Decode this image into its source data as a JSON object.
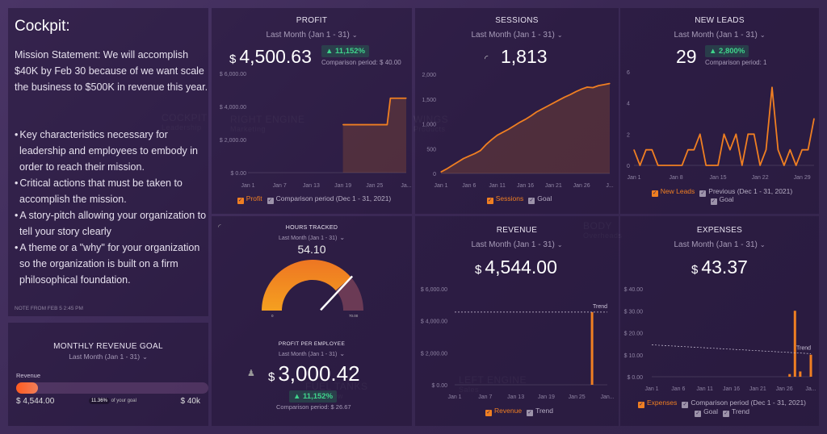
{
  "colors": {
    "accent": "#f07f22",
    "positive": "#3fd48b",
    "background": "#3a2854"
  },
  "watermarks": [
    {
      "title": "COCKPIT",
      "sub": "Leadership"
    },
    {
      "title": "RIGHT ENGINE",
      "sub": "Marketing"
    },
    {
      "title": "WINGS",
      "sub": "Products"
    },
    {
      "title": "BODY",
      "sub": "Overheads"
    },
    {
      "title": "LEFT ENGINE",
      "sub": "Sales"
    },
    {
      "title": "FUEL TANKS",
      "sub": "Cash Flow"
    }
  ],
  "note": {
    "title": "Cockpit:",
    "mission": "Mission Statement: We will accomplish $40K by Feb 30 because of we want scale the business to $500K in revenue this year.",
    "bullets": [
      "Key characteristics necessary for leadership and employees to embody in order to reach their mission.",
      "Critical actions that must be taken to accomplish the mission.",
      "A story-pitch allowing your organization to tell your story clearly",
      "A theme or a \"why\" for your organization so the organization is built on a firm philosophical foundation."
    ],
    "footer": "NOTE FROM FEB 5 2:45 PM"
  },
  "revenue_goal": {
    "title": "MONTHLY REVENUE GOAL",
    "date_range": "Last Month (Jan 1 - 31)",
    "label": "Revenue",
    "current": "$ 4,544.00",
    "percent_label": "11.36%",
    "percent_suffix": "of your goal",
    "target": "$ 40k",
    "progress_percent": 11.36
  },
  "profit": {
    "title": "PROFIT",
    "date_range": "Last Month (Jan 1 - 31)",
    "currency": "$",
    "value": "4,500.63",
    "change": "▲ 11,152%",
    "comparison": "Comparison period: $ 40.00",
    "legend": [
      "Profit",
      "Comparison period (Dec 1 - 31, 2021)"
    ]
  },
  "sessions": {
    "title": "SESSIONS",
    "date_range": "Last Month (Jan 1 - 31)",
    "value": "1,813",
    "legend": [
      "Sessions",
      "Goal"
    ]
  },
  "new_leads": {
    "title": "NEW LEADS",
    "date_range": "Last Month (Jan 1 - 31)",
    "value": "29",
    "change": "▲ 2,800%",
    "comparison": "Comparison period: 1",
    "legend": [
      "New Leads",
      "Previous (Dec 1 - 31, 2021)",
      "Goal"
    ]
  },
  "hours_tracked": {
    "title": "HOURS TRACKED",
    "date_range": "Last Month (Jan 1 - 31)",
    "value": "54.10",
    "min_label": "0",
    "max_label": "70.00",
    "gauge_value": 54.1,
    "gauge_max": 70
  },
  "profit_per_employee": {
    "title": "PROFIT PER EMPLOYEE",
    "date_range": "Last Month (Jan 1 - 31)",
    "currency": "$",
    "value": "3,000.42",
    "change": "▲ 11,152%",
    "comparison": "Comparison period: $ 26.67"
  },
  "revenue": {
    "title": "REVENUE",
    "date_range": "Last Month (Jan 1 - 31)",
    "currency": "$",
    "value": "4,544.00",
    "legend": [
      "Revenue",
      "Trend"
    ]
  },
  "expenses": {
    "title": "EXPENSES",
    "date_range": "Last Month (Jan 1 - 31)",
    "currency": "$",
    "value": "43.37",
    "legend": [
      "Expenses",
      "Comparison period (Dec 1 - 31, 2021)",
      "Goal",
      "Trend"
    ]
  },
  "chart_data": [
    {
      "id": "profit",
      "type": "area",
      "ylim": [
        0,
        6000
      ],
      "yticks": [
        "$ 6,000.00",
        "$ 4,000.00",
        "$ 2,000.00",
        "$ 0.00"
      ],
      "ytick_values": [
        6000,
        4000,
        2000,
        0
      ],
      "xticks": [
        "Jan 1",
        "Jan 7",
        "Jan 13",
        "Jan 19",
        "Jan 25",
        "Ja..."
      ],
      "xtick_days": [
        1,
        7,
        13,
        19,
        25,
        31
      ],
      "series": [
        {
          "name": "Profit",
          "x": [
            19,
            20,
            21,
            22,
            23,
            24,
            25,
            26,
            27,
            28,
            29,
            30,
            31
          ],
          "y": [
            2900,
            2900,
            2900,
            2900,
            2900,
            2900,
            2900,
            2900,
            2900,
            4500,
            4500,
            4500,
            4500
          ]
        }
      ]
    },
    {
      "id": "sessions",
      "type": "area",
      "ylim": [
        0,
        2000
      ],
      "yticks": [
        "2,000",
        "1,500",
        "1,000",
        "500",
        "0"
      ],
      "ytick_values": [
        2000,
        1500,
        1000,
        500,
        0
      ],
      "xticks": [
        "Jan 1",
        "Jan 6",
        "Jan 11",
        "Jan 16",
        "Jan 21",
        "Jan 26",
        "J..."
      ],
      "xtick_days": [
        1,
        6,
        11,
        16,
        21,
        26,
        31
      ],
      "series": [
        {
          "name": "Sessions",
          "x": [
            1,
            2,
            3,
            4,
            5,
            6,
            7,
            8,
            9,
            10,
            11,
            12,
            13,
            14,
            15,
            16,
            17,
            18,
            19,
            20,
            21,
            22,
            23,
            24,
            25,
            26,
            27,
            28,
            29,
            30,
            31
          ],
          "y": [
            30,
            90,
            160,
            230,
            300,
            350,
            400,
            460,
            580,
            680,
            770,
            830,
            890,
            960,
            1030,
            1090,
            1160,
            1240,
            1300,
            1360,
            1420,
            1480,
            1540,
            1590,
            1650,
            1700,
            1740,
            1730,
            1770,
            1790,
            1813
          ]
        }
      ]
    },
    {
      "id": "new_leads",
      "type": "line",
      "ylim": [
        0,
        6
      ],
      "yticks": [
        "6",
        "4",
        "2",
        "0"
      ],
      "ytick_values": [
        6,
        4,
        2,
        0
      ],
      "xticks": [
        "Jan 1",
        "Jan 8",
        "Jan 15",
        "Jan 22",
        "Jan 29"
      ],
      "xtick_days": [
        1,
        8,
        15,
        22,
        29
      ],
      "series": [
        {
          "name": "New Leads",
          "x": [
            1,
            2,
            3,
            4,
            5,
            6,
            7,
            8,
            9,
            10,
            11,
            12,
            13,
            14,
            15,
            16,
            17,
            18,
            19,
            20,
            21,
            22,
            23,
            24,
            25,
            26,
            27,
            28,
            29,
            30,
            31
          ],
          "y": [
            1,
            0,
            1,
            1,
            0,
            0,
            0,
            0,
            0,
            1,
            1,
            2,
            0,
            0,
            0,
            2,
            1,
            2,
            0,
            2,
            2,
            0,
            1,
            5,
            1,
            0,
            1,
            0,
            1,
            1,
            3
          ]
        }
      ]
    },
    {
      "id": "revenue",
      "type": "bar",
      "ylim": [
        0,
        6000
      ],
      "yticks": [
        "$ 6,000.00",
        "$ 4,000.00",
        "$ 2,000.00",
        "$ 0.00"
      ],
      "ytick_values": [
        6000,
        4000,
        2000,
        0
      ],
      "xticks": [
        "Jan 1",
        "Jan 7",
        "Jan 13",
        "Jan 19",
        "Jan 25",
        "Jan..."
      ],
      "xtick_days": [
        1,
        7,
        13,
        19,
        25,
        31
      ],
      "series": [
        {
          "name": "Revenue",
          "x": [
            28
          ],
          "y": [
            4544
          ]
        }
      ],
      "trend": {
        "label": "Trend",
        "y": [
          4544,
          4544
        ]
      }
    },
    {
      "id": "expenses",
      "type": "bar",
      "ylim": [
        0,
        40
      ],
      "yticks": [
        "$ 40.00",
        "$ 30.00",
        "$ 20.00",
        "$ 10.00",
        "$ 0.00"
      ],
      "ytick_values": [
        40,
        30,
        20,
        10,
        0
      ],
      "xticks": [
        "Jan 1",
        "Jan 6",
        "Jan 11",
        "Jan 16",
        "Jan 21",
        "Jan 26",
        "Ja..."
      ],
      "xtick_days": [
        1,
        6,
        11,
        16,
        21,
        26,
        31
      ],
      "series": [
        {
          "name": "Expenses",
          "x": [
            27,
            28,
            29,
            31
          ],
          "y": [
            1.2,
            30,
            2.4,
            10
          ]
        }
      ],
      "trend": {
        "label": "Trend",
        "y": [
          14.5,
          10.5
        ]
      }
    }
  ]
}
